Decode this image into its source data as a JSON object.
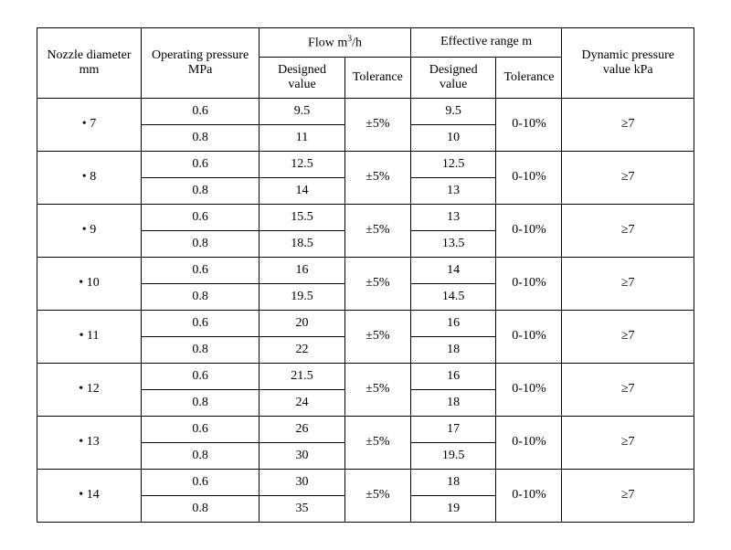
{
  "table": {
    "headers": {
      "nozzle_diameter": "Nozzle diameter mm",
      "operating_pressure": "Operating pressure MPa",
      "flow_group": "Flow m³/h",
      "flow_designed": "Designed value",
      "flow_tolerance": "Tolerance",
      "range_group": "Effective range m",
      "range_designed": "Designed value",
      "range_tolerance": "Tolerance",
      "dynamic_pressure": "Dynamic pressure value kPa"
    },
    "groups": [
      {
        "nozzle": "7",
        "flow_tolerance": "±5%",
        "range_tolerance": "0-10%",
        "dynamic_pressure": "≥7",
        "rows": [
          {
            "pressure": "0.6",
            "flow_designed": "9.5",
            "range_designed": "9.5"
          },
          {
            "pressure": "0.8",
            "flow_designed": "11",
            "range_designed": "10"
          }
        ]
      },
      {
        "nozzle": "8",
        "flow_tolerance": "±5%",
        "range_tolerance": "0-10%",
        "dynamic_pressure": "≥7",
        "rows": [
          {
            "pressure": "0.6",
            "flow_designed": "12.5",
            "range_designed": "12.5"
          },
          {
            "pressure": "0.8",
            "flow_designed": "14",
            "range_designed": "13"
          }
        ]
      },
      {
        "nozzle": "9",
        "flow_tolerance": "±5%",
        "range_tolerance": "0-10%",
        "dynamic_pressure": "≥7",
        "rows": [
          {
            "pressure": "0.6",
            "flow_designed": "15.5",
            "range_designed": "13"
          },
          {
            "pressure": "0.8",
            "flow_designed": "18.5",
            "range_designed": "13.5"
          }
        ]
      },
      {
        "nozzle": "10",
        "flow_tolerance": "±5%",
        "range_tolerance": "0-10%",
        "dynamic_pressure": "≥7",
        "rows": [
          {
            "pressure": "0.6",
            "flow_designed": "16",
            "range_designed": "14"
          },
          {
            "pressure": "0.8",
            "flow_designed": "19.5",
            "range_designed": "14.5"
          }
        ]
      },
      {
        "nozzle": "11",
        "flow_tolerance": "±5%",
        "range_tolerance": "0-10%",
        "dynamic_pressure": "≥7",
        "rows": [
          {
            "pressure": "0.6",
            "flow_designed": "20",
            "range_designed": "16"
          },
          {
            "pressure": "0.8",
            "flow_designed": "22",
            "range_designed": "18"
          }
        ]
      },
      {
        "nozzle": "12",
        "flow_tolerance": "±5%",
        "range_tolerance": "0-10%",
        "dynamic_pressure": "≥7",
        "rows": [
          {
            "pressure": "0.6",
            "flow_designed": "21.5",
            "range_designed": "16"
          },
          {
            "pressure": "0.8",
            "flow_designed": "24",
            "range_designed": "18"
          }
        ]
      },
      {
        "nozzle": "13",
        "flow_tolerance": "±5%",
        "range_tolerance": "0-10%",
        "dynamic_pressure": "≥7",
        "rows": [
          {
            "pressure": "0.6",
            "flow_designed": "26",
            "range_designed": "17"
          },
          {
            "pressure": "0.8",
            "flow_designed": "30",
            "range_designed": "19.5"
          }
        ]
      },
      {
        "nozzle": "14",
        "flow_tolerance": "±5%",
        "range_tolerance": "0-10%",
        "dynamic_pressure": "≥7",
        "rows": [
          {
            "pressure": "0.6",
            "flow_designed": "30",
            "range_designed": "18"
          },
          {
            "pressure": "0.8",
            "flow_designed": "35",
            "range_designed": "19"
          }
        ]
      }
    ],
    "column_widths": [
      "90",
      "90",
      "120",
      "90",
      "90",
      "90",
      "90"
    ],
    "border_color": "#000000",
    "background_color": "#ffffff",
    "text_color": "#000000",
    "font_size": 14
  }
}
